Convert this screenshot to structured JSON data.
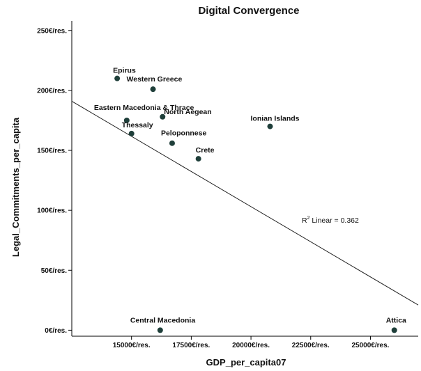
{
  "chart_data": {
    "type": "scatter",
    "title": "Digital Convergence",
    "xlabel": "GDP_per_capita07",
    "ylabel": "Legal_Commitments_per_capita",
    "xlim": [
      12500,
      27000
    ],
    "ylim": [
      -5,
      258
    ],
    "xticks": [
      15000,
      17500,
      20000,
      22500,
      25000
    ],
    "xtick_labels": [
      "15000€/res.",
      "17500€/res.",
      "20000€/res.",
      "22500€/res.",
      "25000€/res."
    ],
    "yticks": [
      0,
      50,
      100,
      150,
      200,
      250
    ],
    "ytick_labels": [
      "0€/res.",
      "50€/res.",
      "100€/res.",
      "150€/res.",
      "200€/res.",
      "250€/res."
    ],
    "grid": false,
    "legend": "none",
    "marker_color": "#1f3f3a",
    "points": [
      {
        "label": "Epirus",
        "x": 14400,
        "y": 210
      },
      {
        "label": "Western Greece",
        "x": 15900,
        "y": 201
      },
      {
        "label": "Eastern Macedonia & Thrace",
        "x": 14800,
        "y": 175
      },
      {
        "label": "Thessaly",
        "x": 15000,
        "y": 164
      },
      {
        "label": "North Aegean",
        "x": 16300,
        "y": 178
      },
      {
        "label": "Peloponnese",
        "x": 16700,
        "y": 156
      },
      {
        "label": "Crete",
        "x": 17800,
        "y": 143
      },
      {
        "label": "Ionian Islands",
        "x": 20800,
        "y": 170
      },
      {
        "label": "Central Macedonia",
        "x": 16200,
        "y": 0
      },
      {
        "label": "Attica",
        "x": 26000,
        "y": 0
      }
    ],
    "fit_line": {
      "x": [
        12500,
        27000
      ],
      "y": [
        191,
        21
      ]
    },
    "annotation": {
      "base": "R",
      "sup": "2",
      "text": " Linear = 0.362"
    }
  }
}
